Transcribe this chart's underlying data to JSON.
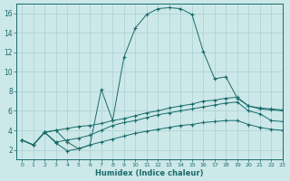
{
  "xlabel": "Humidex (Indice chaleur)",
  "background_color": "#cce8e8",
  "grid_color": "#aad0d0",
  "line_color": "#1a6b6b",
  "xlim": [
    -0.5,
    23
  ],
  "ylim": [
    1.0,
    17.0
  ],
  "xticks": [
    0,
    1,
    2,
    3,
    4,
    5,
    6,
    7,
    8,
    9,
    10,
    11,
    12,
    13,
    14,
    15,
    16,
    17,
    18,
    19,
    20,
    21,
    22,
    23
  ],
  "yticks": [
    2,
    4,
    6,
    8,
    10,
    12,
    14,
    16
  ],
  "curve1_x": [
    0,
    1,
    2,
    3,
    4,
    5,
    6,
    7,
    8,
    9,
    10,
    11,
    12,
    13,
    14,
    15,
    16,
    17,
    18,
    19,
    20,
    21,
    22,
    23
  ],
  "curve1_y": [
    3.0,
    2.5,
    3.8,
    4.0,
    2.8,
    2.1,
    2.5,
    8.2,
    5.0,
    11.5,
    14.5,
    15.9,
    16.5,
    16.6,
    16.5,
    15.9,
    12.1,
    9.3,
    9.5,
    7.3,
    6.5,
    6.2,
    6.1,
    6.0
  ],
  "curve2_x": [
    0,
    1,
    2,
    3,
    4,
    5,
    6,
    7,
    8,
    9,
    10,
    11,
    12,
    13,
    14,
    15,
    16,
    17,
    18,
    19,
    20,
    21,
    22,
    23
  ],
  "curve2_y": [
    3.0,
    2.5,
    3.8,
    4.0,
    4.2,
    4.4,
    4.5,
    4.7,
    5.0,
    5.2,
    5.5,
    5.8,
    6.0,
    6.3,
    6.5,
    6.7,
    7.0,
    7.1,
    7.3,
    7.4,
    6.5,
    6.3,
    6.2,
    6.1
  ],
  "curve3_x": [
    0,
    1,
    2,
    3,
    4,
    5,
    6,
    7,
    8,
    9,
    10,
    11,
    12,
    13,
    14,
    15,
    16,
    17,
    18,
    19,
    20,
    21,
    22,
    23
  ],
  "curve3_y": [
    3.0,
    2.5,
    3.8,
    2.8,
    3.0,
    3.2,
    3.5,
    4.0,
    4.5,
    4.8,
    5.0,
    5.3,
    5.6,
    5.8,
    6.0,
    6.2,
    6.4,
    6.6,
    6.8,
    6.9,
    6.0,
    5.7,
    5.0,
    4.9
  ],
  "curve4_x": [
    0,
    1,
    2,
    3,
    4,
    5,
    6,
    7,
    8,
    9,
    10,
    11,
    12,
    13,
    14,
    15,
    16,
    17,
    18,
    19,
    20,
    21,
    22,
    23
  ],
  "curve4_y": [
    3.0,
    2.5,
    3.8,
    2.7,
    1.9,
    2.1,
    2.5,
    2.8,
    3.1,
    3.4,
    3.7,
    3.9,
    4.1,
    4.3,
    4.5,
    4.6,
    4.8,
    4.9,
    5.0,
    5.0,
    4.6,
    4.3,
    4.1,
    4.0
  ]
}
